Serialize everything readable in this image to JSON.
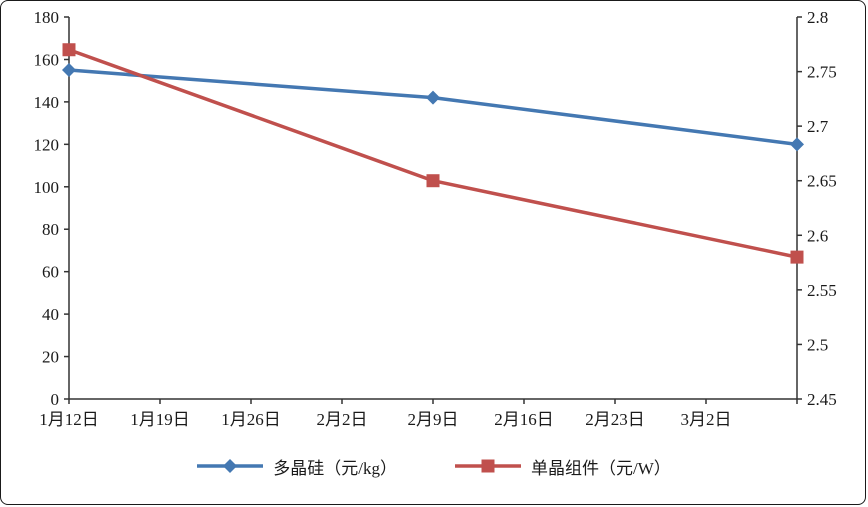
{
  "chart_data": {
    "type": "line",
    "title": "",
    "x_labels": [
      "1月12日",
      "1月19日",
      "1月26日",
      "2月2日",
      "2月9日",
      "2月16日",
      "2月23日",
      "3月2日"
    ],
    "x_label_positions": [
      0,
      1,
      2,
      3,
      4,
      5,
      6,
      7
    ],
    "x_domain": [
      0,
      8
    ],
    "left_axis": {
      "min": 0,
      "max": 180,
      "step": 20,
      "ticks": [
        0,
        20,
        40,
        60,
        80,
        100,
        120,
        140,
        160,
        180
      ]
    },
    "right_axis": {
      "min": 2.45,
      "max": 2.8,
      "step": 0.05,
      "ticks": [
        2.45,
        2.5,
        2.55,
        2.6,
        2.65,
        2.7,
        2.75,
        2.8
      ]
    },
    "series": [
      {
        "name": "多晶硅（元/kg）",
        "axis": "left",
        "marker": "diamond",
        "color": "#4478b2",
        "points": [
          [
            0,
            155
          ],
          [
            4,
            142
          ],
          [
            8,
            120
          ]
        ]
      },
      {
        "name": "单晶组件（元/W）",
        "axis": "right",
        "marker": "square",
        "color": "#c0504d",
        "points": [
          [
            0,
            2.77
          ],
          [
            4,
            2.65
          ],
          [
            8,
            2.58
          ]
        ]
      }
    ],
    "legend_position": "bottom",
    "grid": false,
    "colors": {
      "axis": "#333333",
      "text": "#1a1a1a",
      "background": "#ffffff",
      "border": "#1a1a1a"
    }
  }
}
